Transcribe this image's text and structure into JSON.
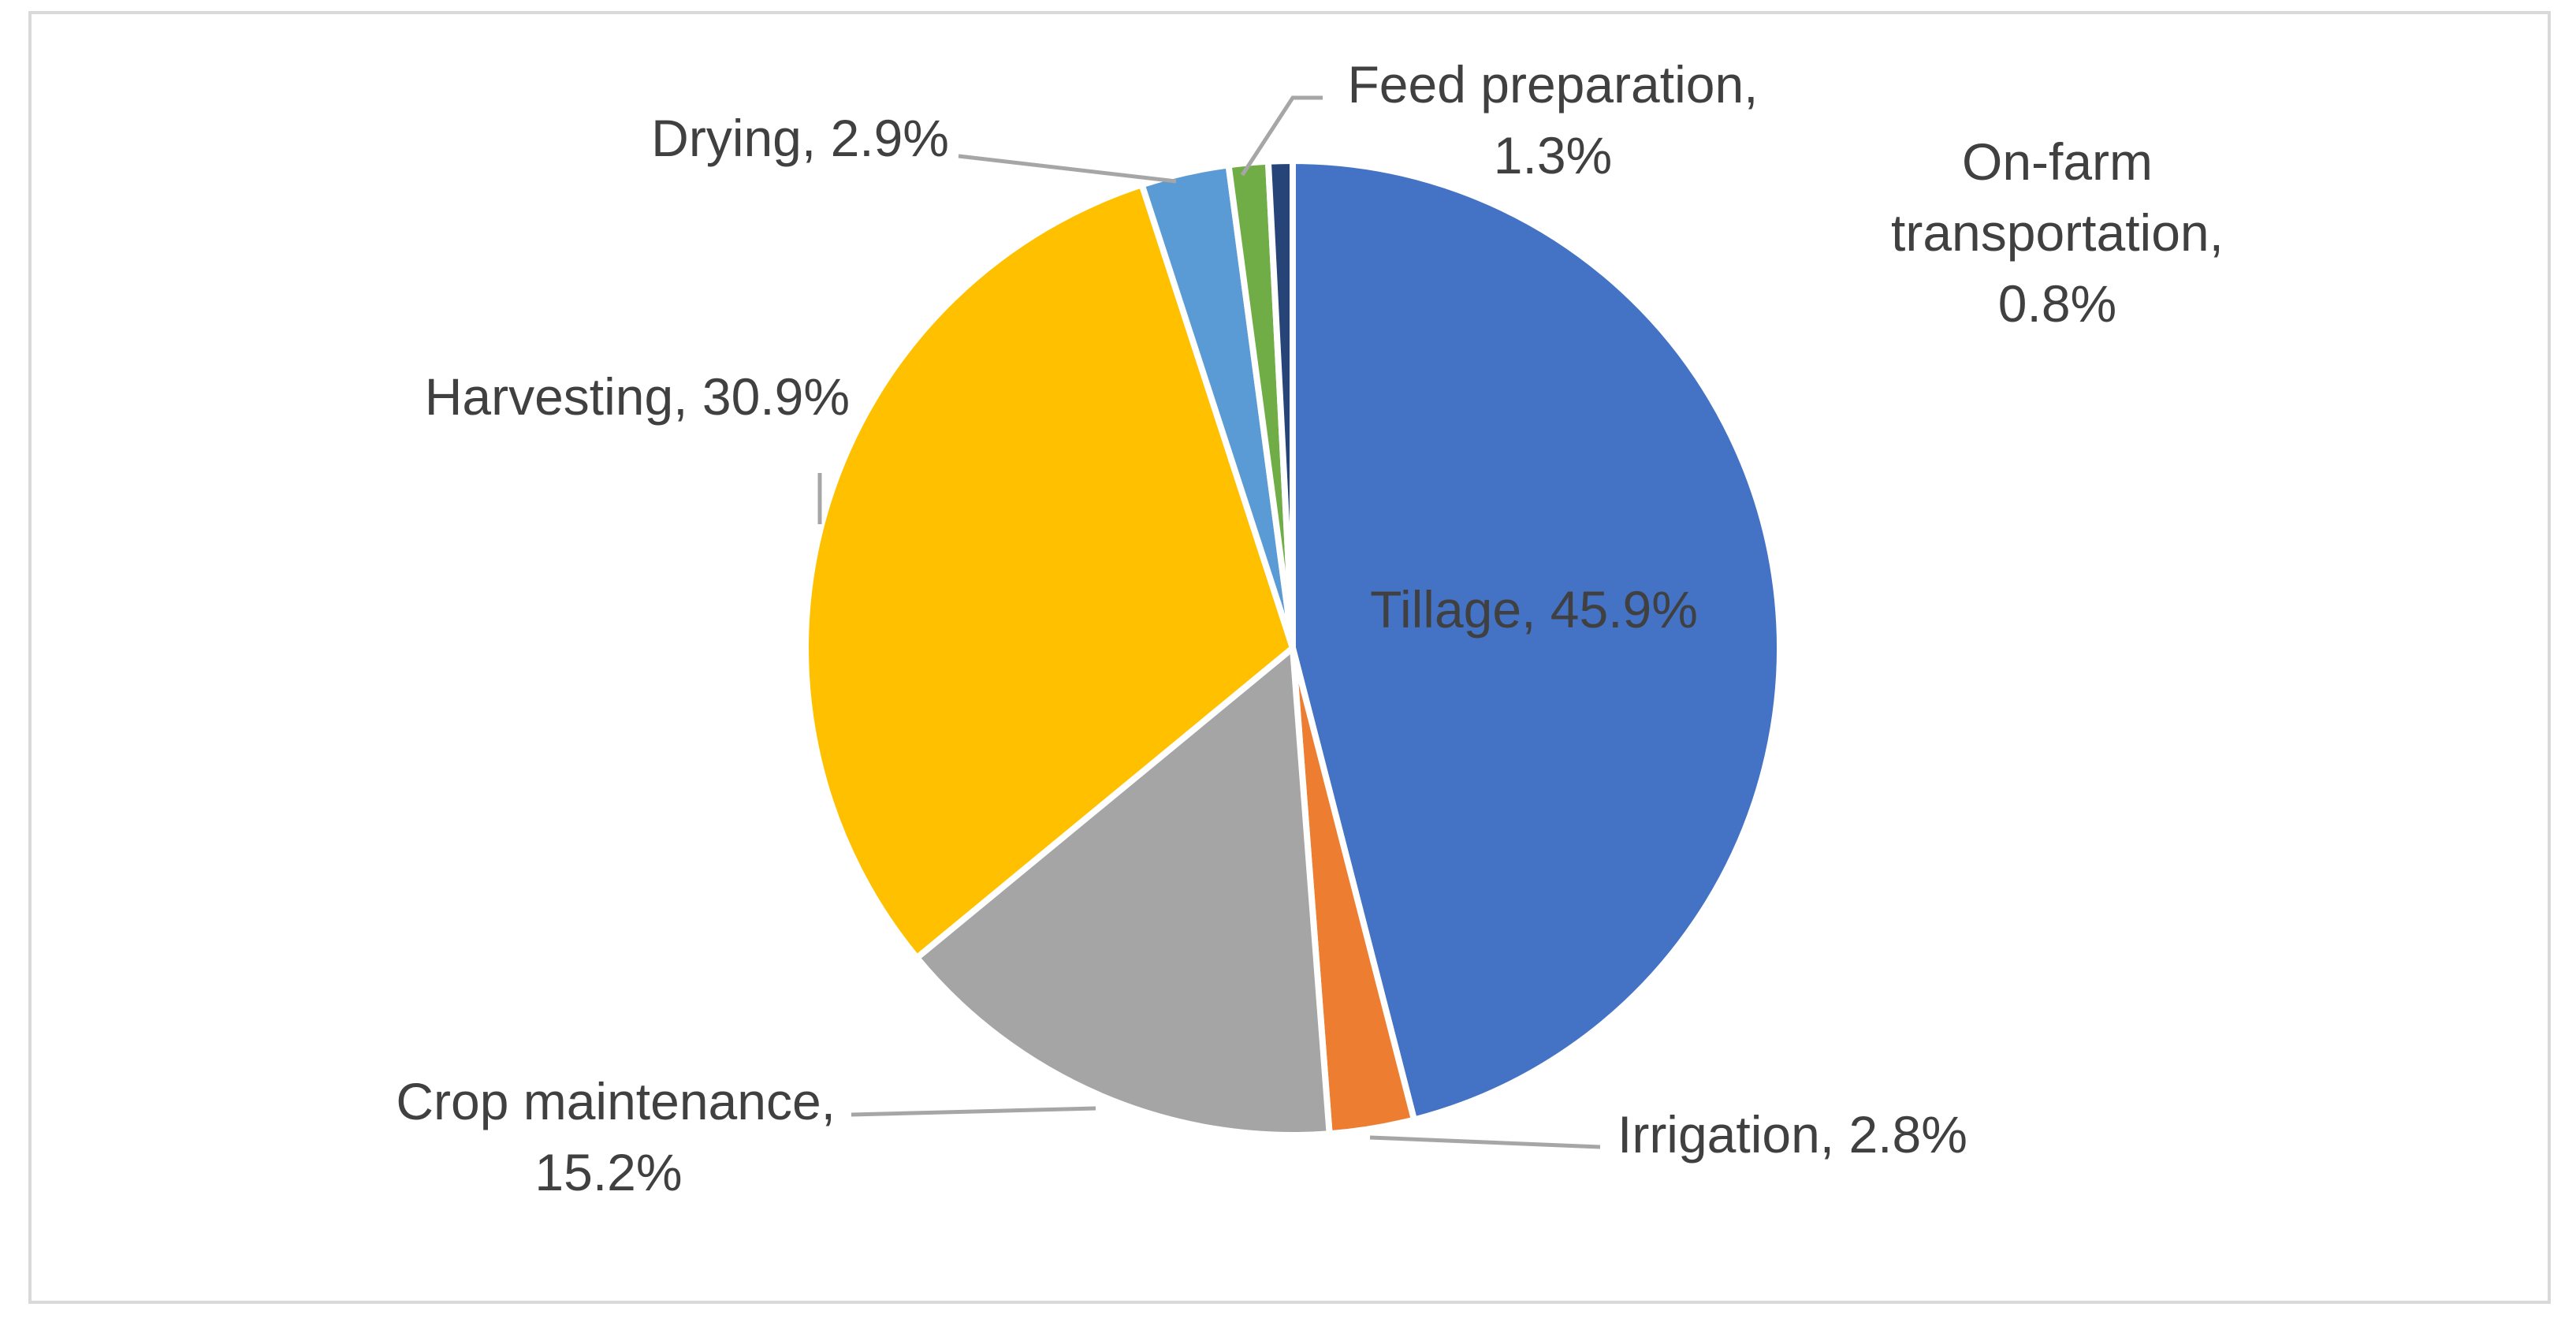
{
  "chart_data": {
    "type": "pie",
    "title": "",
    "slices": [
      {
        "name": "Tillage",
        "value": 45.9,
        "label": "Tillage, 45.9%",
        "color": "#4472c4"
      },
      {
        "name": "Irrigation",
        "value": 2.8,
        "label": "Irrigation, 2.8%",
        "color": "#ed7d31"
      },
      {
        "name": "Crop maintenance",
        "value": 15.2,
        "label_lines": [
          "Crop maintenance,",
          "15.2%"
        ],
        "color": "#a5a5a5"
      },
      {
        "name": "Harvesting",
        "value": 30.9,
        "label": "Harvesting, 30.9%",
        "color": "#ffc000"
      },
      {
        "name": "Drying",
        "value": 2.9,
        "label": "Drying, 2.9%",
        "color": "#5b9bd5"
      },
      {
        "name": "Feed preparation",
        "value": 1.3,
        "label_lines": [
          "Feed preparation,",
          "1.3%"
        ],
        "color": "#70ad47"
      },
      {
        "name": "On-farm transportation",
        "value": 0.8,
        "label_lines": [
          "On-farm",
          "transportation,",
          "0.8%"
        ],
        "color": "#264478"
      }
    ],
    "start_angle_deg": 0,
    "direction": "clockwise",
    "leader_line_color": "#a6a6a6"
  }
}
